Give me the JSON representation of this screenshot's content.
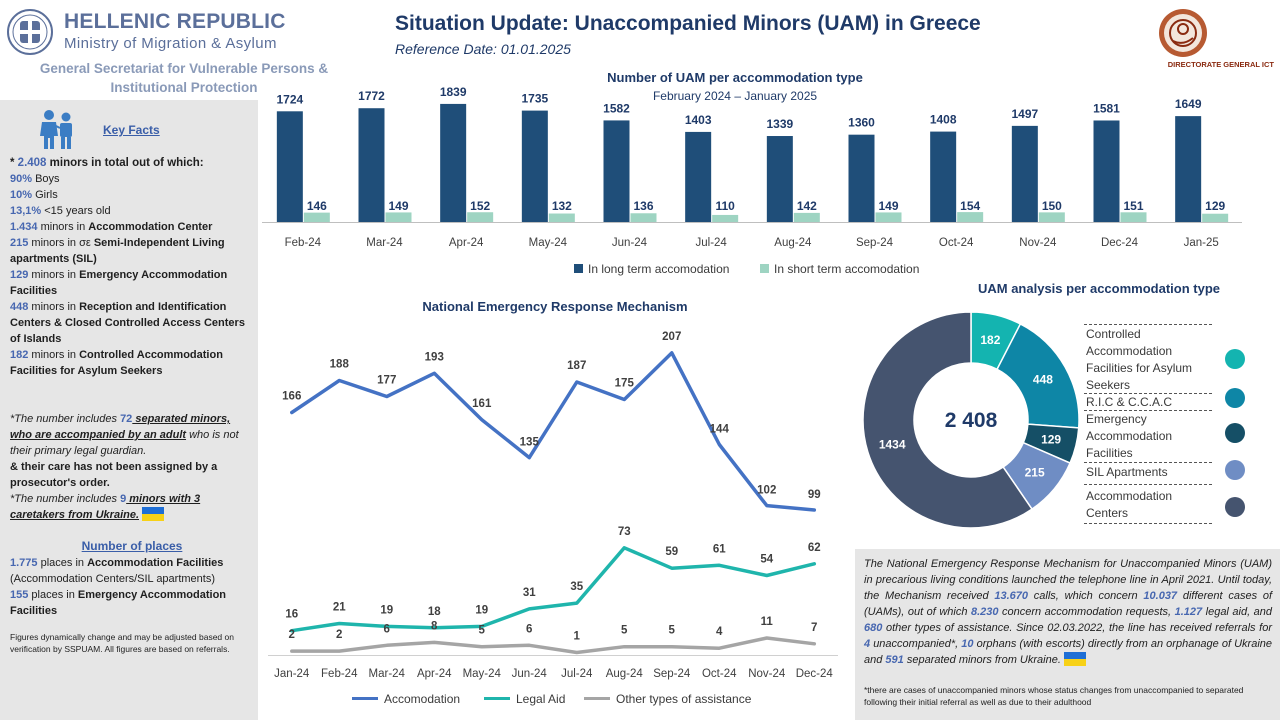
{
  "header": {
    "country": "HELLENIC REPUBLIC",
    "ministry": "Ministry of Migration & Asylum",
    "secretariat": "General Secretariat for Vulnerable Persons & Institutional Protection",
    "title": "Situation Update: Unaccompanied Minors (UAM) in Greece",
    "reference_date": "Reference Date: 01.01.2025",
    "dg_label": "DIRECTORATE GENERAL ICT",
    "colors": {
      "title": "#1f3a68",
      "emblem": "#5b6f9a"
    }
  },
  "key_facts": {
    "title": "Key Facts",
    "total_value": "2.408",
    "total_text": " minors in total out of which:",
    "boys_value": "90%",
    "boys_text": " Boys",
    "girls_value": "10%",
    "girls_text": " Girls",
    "under15_value": "13,1%",
    "under15_text": " <15 years old",
    "acc_value": "1.434",
    "acc_text_a": " minors in ",
    "acc_text_b": "Accommodation Center",
    "sil_value": "215",
    "sil_text_a": " minors in σε ",
    "sil_text_b": "Semi-Independent Living apartments (SIL)",
    "emerg_value": "129",
    "emerg_text_a": " minors in ",
    "emerg_text_b": "Emergency Accommodation Facilities",
    "ric_value": "448",
    "ric_text_a": " minors in ",
    "ric_text_b": "Reception and Identification Centers & Closed Controlled Access Centers of Islands",
    "caf_value": "182",
    "caf_text_a": " minors in ",
    "caf_text_b": "Controlled Accommodation Facilities for Asylum Seekers",
    "note1_a": "*The number includes ",
    "note1_value": "72",
    "note1_b": " separated minors, who are accompanied by an adult",
    "note1_c": " who is not their primary legal guardian.",
    "note1_d": "& their care has not been assigned by a prosecutor's order.",
    "note2_a": "*The number includes ",
    "note2_value": "9",
    "note2_b": " minors with 3 caretakers from Ukraine."
  },
  "places": {
    "title": "Number of places",
    "p1_value": "1.775",
    "p1_text_a": " places in ",
    "p1_text_b": "Accommodation Facilities",
    "p1_text_c": "(Accommodation Centers/SIL apartments)",
    "p2_value": "155",
    "p2_text_a": " places in ",
    "p2_text_b": "Emergency Accommodation Facilities",
    "footnote": "Figures dynamically change and may be adjusted based on verification by SSPUAM. All figures are based on referrals."
  },
  "chart_data": [
    {
      "type": "bar",
      "title": "Number of UAM per accommodation type",
      "subtitle": "February 2024 – January 2025",
      "categories": [
        "Feb-24",
        "Mar-24",
        "Apr-24",
        "May-24",
        "Jun-24",
        "Jul-24",
        "Aug-24",
        "Sep-24",
        "Oct-24",
        "Nov-24",
        "Dec-24",
        "Jan-25"
      ],
      "series": [
        {
          "name": "In long term accomodation",
          "color": "#1f4e79",
          "values": [
            1724,
            1772,
            1839,
            1735,
            1582,
            1403,
            1339,
            1360,
            1408,
            1497,
            1581,
            1649
          ]
        },
        {
          "name": "In short term accomodation",
          "color": "#9ed4c2",
          "values": [
            146,
            149,
            152,
            132,
            136,
            110,
            142,
            149,
            154,
            150,
            151,
            129
          ]
        }
      ],
      "ylim": [
        0,
        1900
      ],
      "legend": "bottom"
    },
    {
      "type": "line",
      "title": "National Emergency Response Mechanism",
      "categories": [
        "Jan-24",
        "Feb-24",
        "Mar-24",
        "Apr-24",
        "May-24",
        "Jun-24",
        "Jul-24",
        "Aug-24",
        "Sep-24",
        "Oct-24",
        "Nov-24",
        "Dec-24"
      ],
      "series": [
        {
          "name": "Accomodation",
          "color": "#4472c4",
          "values": [
            166,
            188,
            177,
            193,
            161,
            135,
            187,
            175,
            207,
            144,
            102,
            99
          ]
        },
        {
          "name": "Legal Aid",
          "color": "#1fb5ac",
          "values": [
            16,
            21,
            19,
            18,
            19,
            31,
            35,
            73,
            59,
            61,
            54,
            62
          ]
        },
        {
          "name": "Other types of assistance",
          "color": "#a5a5a5",
          "values": [
            2,
            2,
            6,
            8,
            5,
            6,
            1,
            5,
            5,
            4,
            11,
            7
          ]
        }
      ],
      "ylim": [
        0,
        220
      ],
      "legend": "bottom"
    },
    {
      "type": "pie",
      "title": "UAM analysis per accommodation type",
      "center_label": "2 408",
      "slices": [
        {
          "name": "Controlled Accommodation Facilities for Asylum Seekers",
          "value": 182,
          "color": "#14b4b0"
        },
        {
          "name": "R.I.C & C.C.A.C",
          "value": 448,
          "color": "#0e86a6"
        },
        {
          "name": "Emergency Accommodation Facilities",
          "value": 129,
          "color": "#154f66"
        },
        {
          "name": "SIL Apartments",
          "value": 215,
          "color": "#6f8dc4"
        },
        {
          "name": "Accommodation Centers",
          "value": 1434,
          "color": "#45546f"
        }
      ],
      "legend": "right"
    }
  ],
  "info": {
    "text_a": "The National Emergency Response Mechanism for Unaccompanied Minors (UAM) in precarious living conditions launched the telephone line in April 2021. Until today, the Mechanism received ",
    "calls": "13.670",
    "text_b": " calls, which concern ",
    "cases": "10.037",
    "text_c": " different cases of (UAMs), out of which ",
    "accreq": "8.230",
    "text_d": " concern accommodation requests, ",
    "legal": "1.127",
    "text_e": " legal aid, and ",
    "other": "680",
    "text_f": " other types of assistance. Since 02.03.2022, the line has received referrals for ",
    "unacc": "4",
    "text_g": " unaccompanied*, ",
    "orph": "10",
    "text_h": " orphans (with escorts) directly from an orphanage of Ukraine and ",
    "sep": "591",
    "text_i": " separated minors from Ukraine.",
    "footnote": "*there are cases of unaccompanied minors whose status changes from unaccompanied to separated following their initial referral as well as due to their adulthood"
  }
}
